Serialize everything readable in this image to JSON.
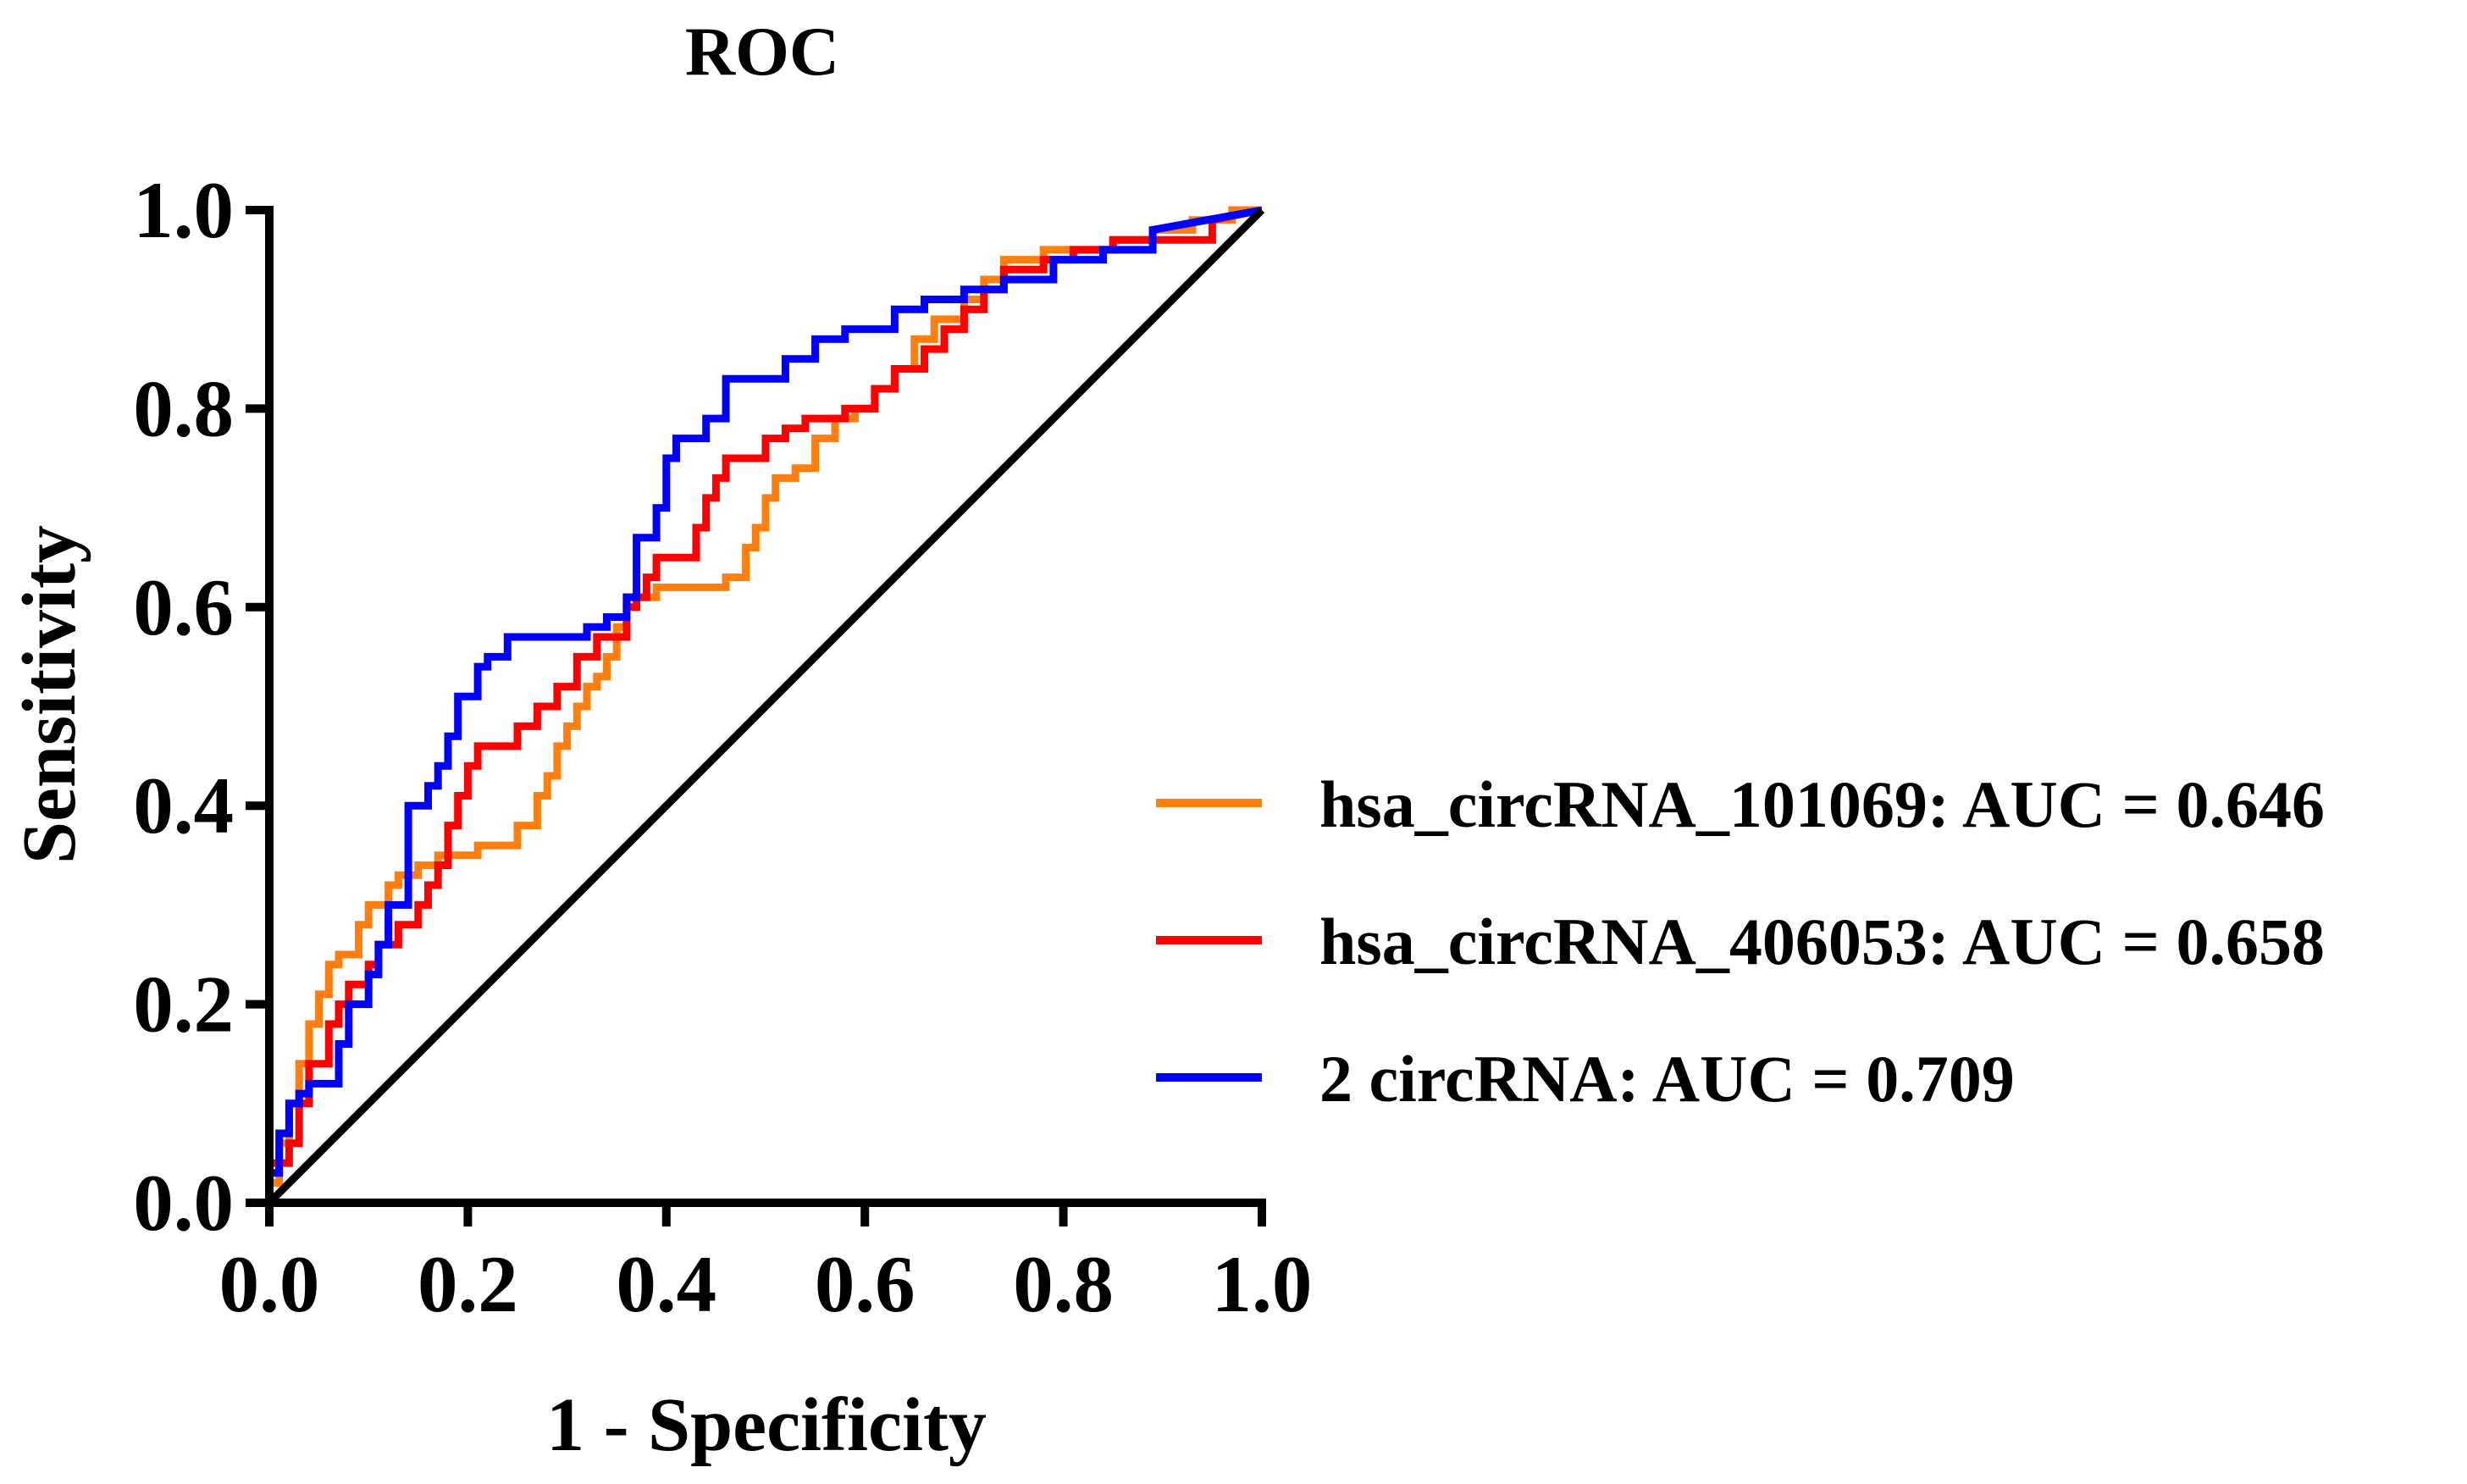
{
  "chart_data": {
    "type": "line",
    "title": "ROC",
    "xlabel": "1 - Specificity",
    "ylabel": "Sensitivity",
    "xlim": [
      0,
      1
    ],
    "ylim": [
      0,
      1
    ],
    "xticks": [
      "0.0",
      "0.2",
      "0.4",
      "0.6",
      "0.8",
      "1.0"
    ],
    "yticks": [
      "0.0",
      "0.2",
      "0.4",
      "0.6",
      "0.8",
      "1.0"
    ],
    "legend_position": "right",
    "grid": false,
    "reference_line": {
      "name": "reference",
      "color": "#000000",
      "x": [
        0,
        1
      ],
      "y": [
        0,
        1
      ]
    },
    "series": [
      {
        "name": "hsa_circRNA_101069",
        "label": "hsa_circRNA_101069: AUC = 0.646",
        "auc": 0.646,
        "color": "#ff7f0e",
        "x": [
          0,
          0,
          0.01,
          0.01,
          0.02,
          0.02,
          0.03,
          0.03,
          0.04,
          0.04,
          0.05,
          0.05,
          0.06,
          0.06,
          0.07,
          0.07,
          0.09,
          0.09,
          0.1,
          0.1,
          0.12,
          0.12,
          0.13,
          0.13,
          0.15,
          0.15,
          0.17,
          0.17,
          0.19,
          0.19,
          0.21,
          0.21,
          0.23,
          0.23,
          0.25,
          0.25,
          0.27,
          0.27,
          0.28,
          0.28,
          0.29,
          0.29,
          0.3,
          0.3,
          0.31,
          0.31,
          0.32,
          0.32,
          0.33,
          0.33,
          0.34,
          0.34,
          0.35,
          0.35,
          0.36,
          0.36,
          0.38,
          0.38,
          0.39,
          0.39,
          0.41,
          0.41,
          0.46,
          0.46,
          0.48,
          0.48,
          0.49,
          0.49,
          0.5,
          0.5,
          0.51,
          0.51,
          0.53,
          0.53,
          0.55,
          0.55,
          0.57,
          0.57,
          0.59,
          0.59,
          0.61,
          0.61,
          0.63,
          0.63,
          0.65,
          0.65,
          0.67,
          0.67,
          0.7,
          0.7,
          0.72,
          0.72,
          0.74,
          0.74,
          0.78,
          0.78,
          0.8,
          0.8,
          0.85,
          0.85,
          0.89,
          0.89,
          0.93,
          0.93,
          0.97,
          0.97,
          1.0
        ],
        "y": [
          0,
          0.02,
          0.02,
          0.06,
          0.06,
          0.1,
          0.1,
          0.14,
          0.14,
          0.18,
          0.18,
          0.21,
          0.21,
          0.24,
          0.24,
          0.25,
          0.25,
          0.28,
          0.28,
          0.3,
          0.3,
          0.32,
          0.32,
          0.33,
          0.33,
          0.34,
          0.34,
          0.35,
          0.35,
          0.35,
          0.35,
          0.36,
          0.36,
          0.36,
          0.36,
          0.38,
          0.38,
          0.41,
          0.41,
          0.43,
          0.43,
          0.46,
          0.46,
          0.48,
          0.48,
          0.5,
          0.5,
          0.52,
          0.52,
          0.53,
          0.53,
          0.55,
          0.55,
          0.58,
          0.58,
          0.61,
          0.61,
          0.61,
          0.61,
          0.62,
          0.62,
          0.62,
          0.62,
          0.63,
          0.63,
          0.66,
          0.66,
          0.68,
          0.68,
          0.71,
          0.71,
          0.73,
          0.73,
          0.74,
          0.74,
          0.77,
          0.77,
          0.79,
          0.79,
          0.8,
          0.8,
          0.82,
          0.82,
          0.84,
          0.84,
          0.87,
          0.87,
          0.89,
          0.89,
          0.91,
          0.91,
          0.93,
          0.93,
          0.95,
          0.95,
          0.96,
          0.96,
          0.96,
          0.96,
          0.97,
          0.97,
          0.98,
          0.98,
          0.99,
          0.99,
          1.0,
          1.0
        ]
      },
      {
        "name": "hsa_circRNA_406053",
        "label": "hsa_circRNA_406053: AUC = 0.658",
        "auc": 0.658,
        "color": "#ff0000",
        "x": [
          0,
          0,
          0.02,
          0.02,
          0.03,
          0.03,
          0.04,
          0.04,
          0.06,
          0.06,
          0.07,
          0.07,
          0.08,
          0.08,
          0.1,
          0.1,
          0.11,
          0.11,
          0.13,
          0.13,
          0.15,
          0.15,
          0.16,
          0.16,
          0.17,
          0.17,
          0.18,
          0.18,
          0.19,
          0.19,
          0.2,
          0.2,
          0.21,
          0.21,
          0.25,
          0.25,
          0.27,
          0.27,
          0.29,
          0.29,
          0.31,
          0.31,
          0.33,
          0.33,
          0.36,
          0.36,
          0.37,
          0.37,
          0.38,
          0.38,
          0.39,
          0.39,
          0.43,
          0.43,
          0.44,
          0.44,
          0.45,
          0.45,
          0.46,
          0.46,
          0.47,
          0.47,
          0.5,
          0.5,
          0.52,
          0.52,
          0.54,
          0.54,
          0.58,
          0.58,
          0.61,
          0.61,
          0.63,
          0.63,
          0.66,
          0.66,
          0.68,
          0.68,
          0.7,
          0.7,
          0.72,
          0.72,
          0.74,
          0.74,
          0.78,
          0.78,
          0.81,
          0.81,
          0.85,
          0.85,
          0.9,
          0.9,
          0.95,
          0.95,
          1.0
        ],
        "y": [
          0,
          0.04,
          0.04,
          0.06,
          0.06,
          0.1,
          0.1,
          0.14,
          0.14,
          0.18,
          0.18,
          0.2,
          0.2,
          0.22,
          0.22,
          0.24,
          0.24,
          0.26,
          0.26,
          0.28,
          0.28,
          0.3,
          0.3,
          0.32,
          0.32,
          0.34,
          0.34,
          0.38,
          0.38,
          0.41,
          0.41,
          0.44,
          0.44,
          0.46,
          0.46,
          0.48,
          0.48,
          0.5,
          0.5,
          0.52,
          0.52,
          0.55,
          0.55,
          0.57,
          0.57,
          0.6,
          0.6,
          0.61,
          0.61,
          0.63,
          0.63,
          0.65,
          0.65,
          0.68,
          0.68,
          0.71,
          0.71,
          0.73,
          0.73,
          0.75,
          0.75,
          0.75,
          0.75,
          0.77,
          0.77,
          0.78,
          0.78,
          0.79,
          0.79,
          0.8,
          0.8,
          0.82,
          0.82,
          0.84,
          0.84,
          0.86,
          0.86,
          0.88,
          0.88,
          0.9,
          0.9,
          0.92,
          0.92,
          0.94,
          0.94,
          0.95,
          0.95,
          0.96,
          0.96,
          0.97,
          0.97,
          0.97,
          0.97,
          0.99,
          1.0
        ]
      },
      {
        "name": "2 circRNA",
        "label": "2 circRNA: AUC = 0.709",
        "auc": 0.709,
        "color": "#0000ff",
        "x": [
          0,
          0,
          0.01,
          0.01,
          0.02,
          0.02,
          0.03,
          0.03,
          0.04,
          0.04,
          0.07,
          0.07,
          0.08,
          0.08,
          0.09,
          0.09,
          0.1,
          0.1,
          0.11,
          0.11,
          0.12,
          0.12,
          0.14,
          0.14,
          0.15,
          0.15,
          0.16,
          0.16,
          0.17,
          0.17,
          0.18,
          0.18,
          0.19,
          0.19,
          0.21,
          0.21,
          0.22,
          0.22,
          0.24,
          0.24,
          0.32,
          0.32,
          0.34,
          0.34,
          0.36,
          0.36,
          0.37,
          0.37,
          0.39,
          0.39,
          0.4,
          0.4,
          0.41,
          0.41,
          0.44,
          0.44,
          0.46,
          0.46,
          0.52,
          0.52,
          0.55,
          0.55,
          0.58,
          0.58,
          0.63,
          0.63,
          0.66,
          0.66,
          0.7,
          0.7,
          0.74,
          0.74,
          0.79,
          0.79,
          0.84,
          0.84,
          0.89,
          0.89,
          1.0
        ],
        "y": [
          0,
          0.03,
          0.03,
          0.07,
          0.07,
          0.1,
          0.1,
          0.11,
          0.11,
          0.12,
          0.12,
          0.16,
          0.16,
          0.2,
          0.2,
          0.2,
          0.2,
          0.23,
          0.23,
          0.26,
          0.26,
          0.3,
          0.3,
          0.4,
          0.4,
          0.4,
          0.4,
          0.42,
          0.42,
          0.44,
          0.44,
          0.47,
          0.47,
          0.51,
          0.51,
          0.54,
          0.54,
          0.55,
          0.55,
          0.57,
          0.57,
          0.58,
          0.58,
          0.59,
          0.59,
          0.61,
          0.61,
          0.67,
          0.67,
          0.7,
          0.7,
          0.75,
          0.75,
          0.77,
          0.77,
          0.79,
          0.79,
          0.83,
          0.83,
          0.85,
          0.85,
          0.87,
          0.87,
          0.88,
          0.88,
          0.9,
          0.9,
          0.91,
          0.91,
          0.92,
          0.92,
          0.93,
          0.93,
          0.95,
          0.95,
          0.96,
          0.96,
          0.98,
          1.0
        ]
      }
    ]
  }
}
